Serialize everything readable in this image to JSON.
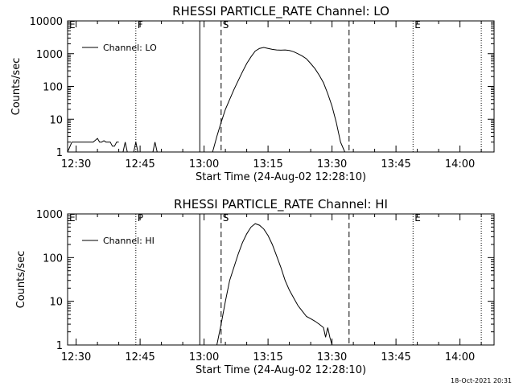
{
  "footer_timestamp": "18-Oct-2021 20:31",
  "chart_data": [
    {
      "type": "line",
      "title": "RHESSI PARTICLE_RATE Channel: LO",
      "xlabel": "Start Time (24-Aug-02 12:28:10)",
      "ylabel": "Counts/sec",
      "y_scale": "log",
      "ylim": [
        1,
        10000
      ],
      "xlim": [
        "12:28",
        "14:08"
      ],
      "y_ticks": [
        "1",
        "10",
        "100",
        "1000",
        "10000"
      ],
      "x_ticks": [
        "12:30",
        "12:45",
        "13:00",
        "13:15",
        "13:30",
        "13:45",
        "14:00"
      ],
      "legend": {
        "label": "Channel: LO",
        "position": "top-left"
      },
      "grid": false,
      "markers": [
        {
          "label": "E",
          "time": "12:28",
          "style": "dotted"
        },
        {
          "label": "F",
          "time": "12:44",
          "style": "dotted"
        },
        {
          "label": "",
          "time": "12:59",
          "style": "solid"
        },
        {
          "label": "S",
          "time": "13:04",
          "style": "dashed"
        },
        {
          "label": "",
          "time": "13:34",
          "style": "dashed"
        },
        {
          "label": "E",
          "time": "13:49",
          "style": "dotted"
        },
        {
          "label": "",
          "time": "14:05",
          "style": "dotted"
        }
      ],
      "series": [
        {
          "segments": [
            {
              "x": [
                "12:28",
                "12:29",
                "12:34",
                "12:35",
                "12:35.5",
                "12:36",
                "12:36.5",
                "12:37",
                "12:38",
                "12:38.5",
                "12:39",
                "12:39.5",
                "12:40"
              ],
              "y": [
                1,
                2,
                2,
                2.6,
                2,
                2,
                2.2,
                2,
                2,
                1.5,
                1.5,
                2,
                2
              ]
            },
            {
              "x": [
                "12:41",
                "12:41.5",
                "12:42"
              ],
              "y": [
                1,
                2,
                1
              ]
            },
            {
              "x": [
                "12:43.5",
                "12:44",
                "12:44.5"
              ],
              "y": [
                1,
                2,
                1
              ]
            },
            {
              "x": [
                "12:48",
                "12:48.5",
                "12:49"
              ],
              "y": [
                1,
                2,
                1
              ]
            },
            {
              "x": [
                "13:02",
                "13:03",
                "13:04",
                "13:05",
                "13:06",
                "13:07",
                "13:08",
                "13:09",
                "13:10",
                "13:11",
                "13:12",
                "13:13",
                "13:14",
                "13:15",
                "13:16",
                "13:17",
                "13:18",
                "13:19",
                "13:20",
                "13:21",
                "13:22",
                "13:23",
                "13:24",
                "13:25",
                "13:26",
                "13:27",
                "13:28",
                "13:29",
                "13:30",
                "13:31",
                "13:32",
                "13:33"
              ],
              "y": [
                1,
                3,
                8,
                20,
                40,
                80,
                150,
                280,
                500,
                800,
                1200,
                1450,
                1550,
                1450,
                1350,
                1300,
                1280,
                1300,
                1250,
                1150,
                1000,
                850,
                700,
                500,
                350,
                220,
                130,
                60,
                25,
                8,
                2,
                1
              ]
            }
          ]
        }
      ]
    },
    {
      "type": "line",
      "title": "RHESSI PARTICLE_RATE Channel: HI",
      "xlabel": "Start Time (24-Aug-02 12:28:10)",
      "ylabel": "Counts/sec",
      "y_scale": "log",
      "ylim": [
        1,
        1000
      ],
      "xlim": [
        "12:28",
        "14:08"
      ],
      "y_ticks": [
        "1",
        "10",
        "100",
        "1000"
      ],
      "x_ticks": [
        "12:30",
        "12:45",
        "13:00",
        "13:15",
        "13:30",
        "13:45",
        "14:00"
      ],
      "legend": {
        "label": "Channel: HI",
        "position": "top-left"
      },
      "grid": false,
      "markers": [
        {
          "label": "E",
          "time": "12:28",
          "style": "dotted"
        },
        {
          "label": "P",
          "time": "12:44",
          "style": "dotted"
        },
        {
          "label": "",
          "time": "12:59",
          "style": "solid"
        },
        {
          "label": "S",
          "time": "13:04",
          "style": "dashed"
        },
        {
          "label": "",
          "time": "13:34",
          "style": "dashed"
        },
        {
          "label": "E",
          "time": "13:49",
          "style": "dotted"
        },
        {
          "label": "",
          "time": "14:05",
          "style": "dotted"
        }
      ],
      "series": [
        {
          "segments": [
            {
              "x": [
                "13:03",
                "13:04",
                "13:05",
                "13:06",
                "13:07",
                "13:08",
                "13:09",
                "13:10",
                "13:11",
                "13:12",
                "13:13",
                "13:14",
                "13:15",
                "13:16",
                "13:17",
                "13:18",
                "13:19",
                "13:20",
                "13:21",
                "13:22",
                "13:23",
                "13:24",
                "13:25",
                "13:26",
                "13:27",
                "13:28",
                "13:28.5",
                "13:29",
                "13:29.5",
                "13:30"
              ],
              "y": [
                1,
                3,
                10,
                30,
                60,
                120,
                220,
                350,
                500,
                600,
                550,
                450,
                320,
                200,
                110,
                60,
                30,
                18,
                12,
                8,
                6,
                4.5,
                4,
                3.5,
                3,
                2.5,
                1.5,
                2.5,
                1.5,
                1
              ]
            }
          ]
        }
      ]
    }
  ]
}
